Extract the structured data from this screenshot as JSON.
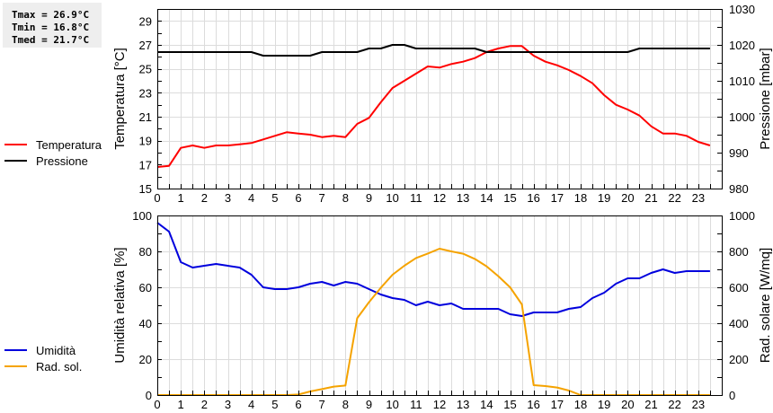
{
  "stats": {
    "tmax": "Tmax = 26.9°C",
    "tmin": "Tmin = 16.8°C",
    "tmed": "Tmed = 21.7°C"
  },
  "legend_top": [
    {
      "label": "Temperatura",
      "color": "#ff0000"
    },
    {
      "label": "Pressione",
      "color": "#000000"
    }
  ],
  "legend_bottom": [
    {
      "label": "Umidità",
      "color": "#0000dd"
    },
    {
      "label": "Rad. sol.",
      "color": "#f5a300"
    }
  ],
  "chart_data": [
    {
      "type": "line",
      "title": "",
      "xlabel": "",
      "x_ticks": [
        0,
        1,
        2,
        3,
        4,
        5,
        6,
        7,
        8,
        9,
        10,
        11,
        12,
        13,
        14,
        15,
        16,
        17,
        18,
        19,
        20,
        21,
        22,
        23
      ],
      "xlim": [
        0,
        24
      ],
      "grid": true,
      "legend_position": "left",
      "ylabel": "Temperatura [°C]",
      "ylim": [
        15,
        30
      ],
      "y_ticks": [
        15,
        17,
        19,
        21,
        23,
        25,
        27,
        29
      ],
      "ylabel_right": "Pressione [mbar]",
      "ylim_right": [
        980,
        1030
      ],
      "y_ticks_right": [
        980,
        990,
        1000,
        1010,
        1020,
        1030
      ],
      "x": [
        0,
        0.5,
        1,
        1.5,
        2,
        2.5,
        3,
        3.5,
        4,
        4.5,
        5,
        5.5,
        6,
        6.5,
        7,
        7.5,
        8,
        8.5,
        9,
        9.5,
        10,
        10.5,
        11,
        11.5,
        12,
        12.5,
        13,
        13.5,
        14,
        14.5,
        15,
        15.5,
        16,
        16.5,
        17,
        17.5,
        18,
        18.5,
        19,
        19.5,
        20,
        20.5,
        21,
        21.5,
        22,
        22.5,
        23,
        23.5
      ],
      "series": [
        {
          "name": "Temperatura",
          "axis": "left",
          "color": "#ff0000",
          "values": [
            16.8,
            16.9,
            18.4,
            18.6,
            18.4,
            18.6,
            18.6,
            18.7,
            18.8,
            19.1,
            19.4,
            19.7,
            19.6,
            19.5,
            19.3,
            19.4,
            19.3,
            20.4,
            20.9,
            22.2,
            23.4,
            24.0,
            24.6,
            25.2,
            25.1,
            25.4,
            25.6,
            25.9,
            26.4,
            26.7,
            26.9,
            26.9,
            26.1,
            25.6,
            25.3,
            24.9,
            24.4,
            23.8,
            22.8,
            22.0,
            21.6,
            21.1,
            20.2,
            19.6,
            19.6,
            19.4,
            18.9,
            18.6
          ]
        },
        {
          "name": "Pressione",
          "axis": "right",
          "color": "#000000",
          "values": [
            1018,
            1018,
            1018,
            1018,
            1018,
            1018,
            1018,
            1018,
            1018,
            1017,
            1017,
            1017,
            1017,
            1017,
            1018,
            1018,
            1018,
            1018,
            1019,
            1019,
            1020,
            1020,
            1019,
            1019,
            1019,
            1019,
            1019,
            1019,
            1018,
            1018,
            1018,
            1018,
            1018,
            1018,
            1018,
            1018,
            1018,
            1018,
            1018,
            1018,
            1018,
            1019,
            1019,
            1019,
            1019,
            1019,
            1019,
            1019
          ]
        }
      ]
    },
    {
      "type": "line",
      "title": "",
      "xlabel": "",
      "x_ticks": [
        0,
        1,
        2,
        3,
        4,
        5,
        6,
        7,
        8,
        9,
        10,
        11,
        12,
        13,
        14,
        15,
        16,
        17,
        18,
        19,
        20,
        21,
        22,
        23
      ],
      "xlim": [
        0,
        24
      ],
      "grid": true,
      "legend_position": "left",
      "ylabel": "Umidità relativa [%]",
      "ylim": [
        0,
        100
      ],
      "y_ticks": [
        0,
        20,
        40,
        60,
        80,
        100
      ],
      "ylabel_right": "Rad. solare [W/mq]",
      "ylim_right": [
        0,
        1000
      ],
      "y_ticks_right": [
        0,
        200,
        400,
        600,
        800,
        1000
      ],
      "x": [
        0,
        0.5,
        1,
        1.5,
        2,
        2.5,
        3,
        3.5,
        4,
        4.5,
        5,
        5.5,
        6,
        6.5,
        7,
        7.5,
        8,
        8.5,
        9,
        9.5,
        10,
        10.5,
        11,
        11.5,
        12,
        12.5,
        13,
        13.5,
        14,
        14.5,
        15,
        15.5,
        16,
        16.5,
        17,
        17.5,
        18,
        18.5,
        19,
        19.5,
        20,
        20.5,
        21,
        21.5,
        22,
        22.5,
        23,
        23.5
      ],
      "series": [
        {
          "name": "Umidità",
          "axis": "left",
          "color": "#0000dd",
          "values": [
            96,
            91,
            74,
            71,
            72,
            73,
            72,
            71,
            67,
            60,
            59,
            59,
            60,
            62,
            63,
            61,
            63,
            62,
            59,
            56,
            54,
            53,
            50,
            52,
            50,
            51,
            48,
            48,
            48,
            48,
            45,
            44,
            46,
            46,
            46,
            48,
            49,
            54,
            57,
            62,
            65,
            65,
            68,
            70,
            68,
            69,
            69,
            69
          ]
        },
        {
          "name": "Rad. sol.",
          "axis": "right",
          "color": "#f5a300",
          "values": [
            0,
            0,
            0,
            0,
            0,
            0,
            0,
            0,
            0,
            0,
            0,
            0,
            3,
            20,
            33,
            47,
            53,
            428,
            517,
            597,
            670,
            720,
            763,
            788,
            815,
            800,
            787,
            758,
            717,
            662,
            600,
            505,
            55,
            50,
            42,
            25,
            0,
            0,
            0,
            0,
            0,
            0,
            0,
            0,
            0,
            0,
            0,
            0
          ]
        }
      ]
    }
  ]
}
